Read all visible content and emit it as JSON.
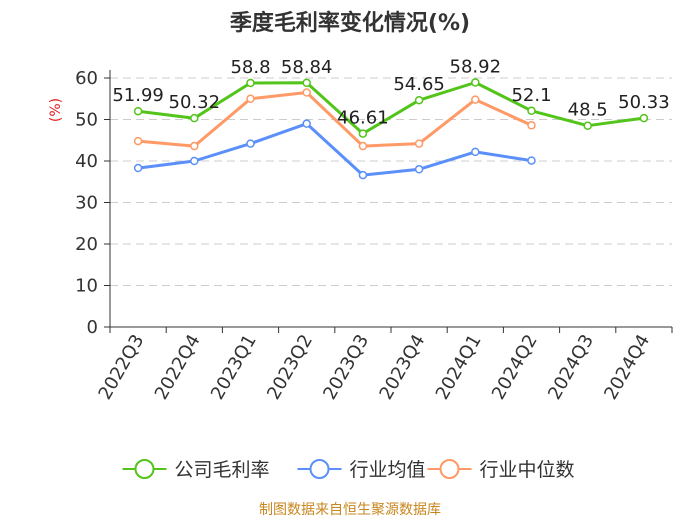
{
  "chart_data": {
    "type": "line",
    "title": "季度毛利率变化情况(%)",
    "ylabel": "(%)",
    "xlabel": "",
    "ylim": [
      0,
      60
    ],
    "yticks": [
      0,
      10,
      20,
      30,
      40,
      50,
      60
    ],
    "grid": true,
    "legend_position": "bottom",
    "categories": [
      "2022Q3",
      "2022Q4",
      "2023Q1",
      "2023Q2",
      "2023Q3",
      "2023Q4",
      "2024Q1",
      "2024Q2",
      "2024Q3",
      "2024Q4"
    ],
    "series": [
      {
        "name": "公司毛利率",
        "color": "#52c41a",
        "values": [
          51.99,
          50.32,
          58.8,
          58.84,
          46.61,
          54.65,
          58.92,
          52.1,
          48.5,
          50.33
        ],
        "labels": [
          "51.99",
          "50.32",
          "58.8",
          "58.84",
          "46.61",
          "54.65",
          "58.92",
          "52.1",
          "48.5",
          "50.33"
        ]
      },
      {
        "name": "行业均值",
        "color": "#5b8ff9",
        "values": [
          38.3,
          40.0,
          44.2,
          49.0,
          36.6,
          38.0,
          42.2,
          40.1,
          null,
          null
        ]
      },
      {
        "name": "行业中位数",
        "color": "#ff9966",
        "values": [
          44.8,
          43.6,
          55.0,
          56.5,
          43.6,
          44.2,
          54.8,
          48.6,
          null,
          null
        ]
      }
    ]
  },
  "source": "制图数据来自恒生聚源数据库"
}
